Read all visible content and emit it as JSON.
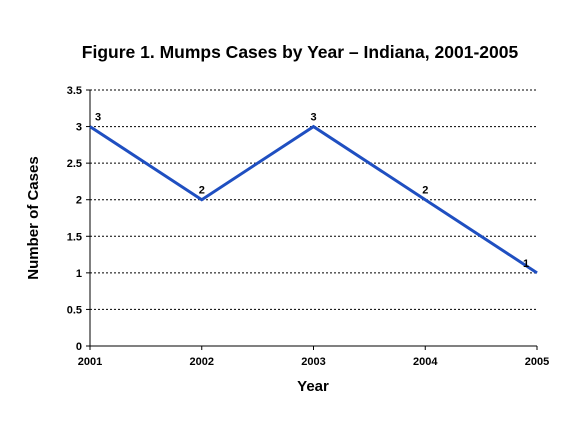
{
  "chart_data": {
    "type": "line",
    "title": "Figure 1.  Mumps Cases by Year – Indiana, 2001-2005",
    "xlabel": "Year",
    "ylabel": "Number of Cases",
    "categories": [
      "2001",
      "2002",
      "2003",
      "2004",
      "2005"
    ],
    "series": [
      {
        "values": [
          3,
          2,
          3,
          2,
          1
        ],
        "data_labels": [
          "3",
          "2",
          "3",
          "2",
          "1"
        ]
      }
    ],
    "ylim": [
      0,
      3.5
    ],
    "yticks": [
      0,
      0.5,
      1,
      1.5,
      2,
      2.5,
      3,
      3.5
    ],
    "ytick_labels": [
      "0",
      "0.5",
      "1",
      "1.5",
      "2",
      "2.5",
      "3",
      "3.5"
    ],
    "grid": "horizontal dotted",
    "legend": "none",
    "line_color": "#1f4fc1",
    "axis_color": "#000000"
  }
}
